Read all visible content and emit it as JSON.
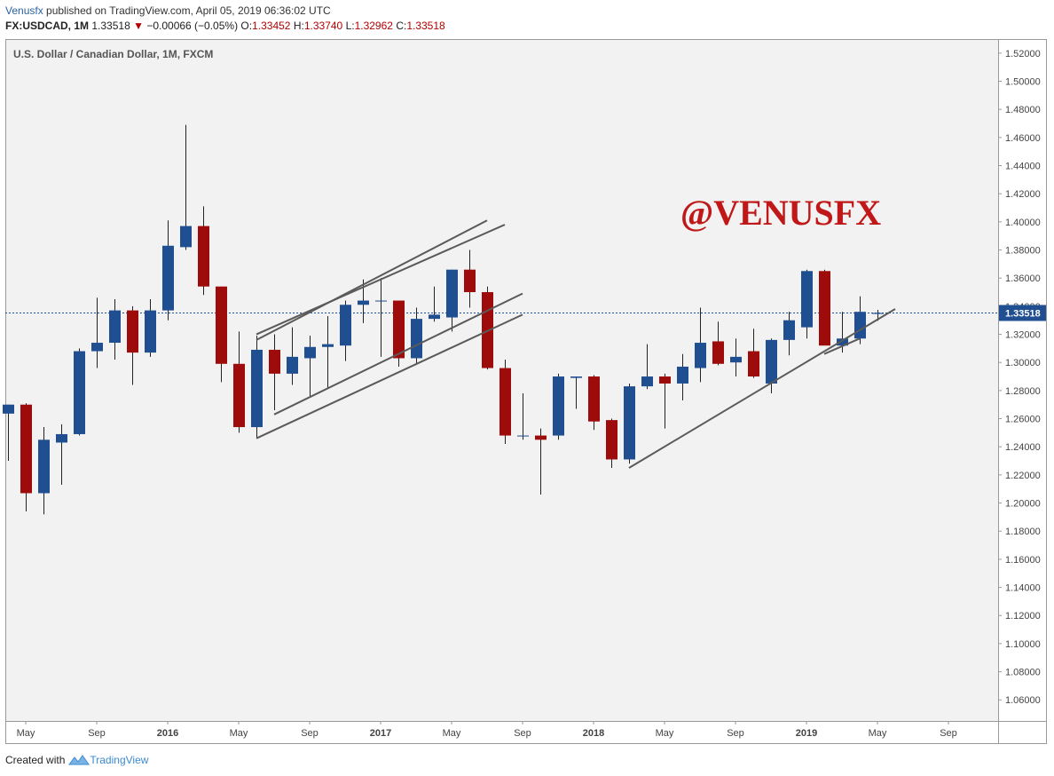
{
  "header": {
    "author": "Venusfx",
    "published_text": " published on TradingView.com, April 05, 2019 06:36:02 UTC",
    "symbol": "FX:USDCAD, 1M",
    "last": "1.33518",
    "change_arrow": "▼",
    "change": "−0.00066 (−0.05%)",
    "o_label": "O:",
    "o_value": "1.33452",
    "h_label": "H:",
    "h_value": "1.33740",
    "l_label": "L:",
    "l_value": "1.32962",
    "c_label": "C:",
    "c_value": "1.33518"
  },
  "watermark": "@VENUSFX",
  "footer": {
    "created_with": "Created with",
    "brand": "TradingView"
  },
  "colors": {
    "up": "#1f4e91",
    "down": "#9e0b0b",
    "price_line": "#1f4e91",
    "trendline": "#5a5a5a",
    "plot_bg": "#f2f2f2"
  },
  "chart_data": {
    "type": "candlestick",
    "title": "U.S. Dollar / Canadian Dollar, 1M, FXCM",
    "last_price_label": "1.33518",
    "last_price": 1.33518,
    "ylim": [
      1.045,
      1.53
    ],
    "y_ticks": [
      "1.52000",
      "1.50000",
      "1.48000",
      "1.46000",
      "1.44000",
      "1.42000",
      "1.40000",
      "1.38000",
      "1.36000",
      "1.34000",
      "1.32000",
      "1.30000",
      "1.28000",
      "1.26000",
      "1.24000",
      "1.22000",
      "1.20000",
      "1.18000",
      "1.16000",
      "1.14000",
      "1.12000",
      "1.10000",
      "1.08000",
      "1.06000"
    ],
    "x_ticks": [
      {
        "label": "May",
        "index": 1,
        "bold": false
      },
      {
        "label": "Sep",
        "index": 5,
        "bold": false
      },
      {
        "label": "2016",
        "index": 9,
        "bold": true
      },
      {
        "label": "May",
        "index": 13,
        "bold": false
      },
      {
        "label": "Sep",
        "index": 17,
        "bold": false
      },
      {
        "label": "2017",
        "index": 21,
        "bold": true
      },
      {
        "label": "May",
        "index": 25,
        "bold": false
      },
      {
        "label": "Sep",
        "index": 29,
        "bold": false
      },
      {
        "label": "2018",
        "index": 33,
        "bold": true
      },
      {
        "label": "May",
        "index": 37,
        "bold": false
      },
      {
        "label": "Sep",
        "index": 41,
        "bold": false
      },
      {
        "label": "2019",
        "index": 45,
        "bold": true
      },
      {
        "label": "May",
        "index": 49,
        "bold": false
      },
      {
        "label": "Sep",
        "index": 53,
        "bold": false
      }
    ],
    "candles": [
      {
        "date": "2015-04",
        "o": 1.2636,
        "h": 1.27,
        "l": 1.23,
        "c": 1.27
      },
      {
        "date": "2015-05",
        "o": 1.27,
        "h": 1.271,
        "l": 1.194,
        "c": 1.207
      },
      {
        "date": "2015-06",
        "o": 1.207,
        "h": 1.254,
        "l": 1.192,
        "c": 1.245
      },
      {
        "date": "2015-07",
        "o": 1.243,
        "h": 1.256,
        "l": 1.213,
        "c": 1.249
      },
      {
        "date": "2015-08",
        "o": 1.249,
        "h": 1.31,
        "l": 1.248,
        "c": 1.308
      },
      {
        "date": "2015-09",
        "o": 1.308,
        "h": 1.346,
        "l": 1.296,
        "c": 1.314
      },
      {
        "date": "2015-10",
        "o": 1.314,
        "h": 1.345,
        "l": 1.302,
        "c": 1.337
      },
      {
        "date": "2015-11",
        "o": 1.337,
        "h": 1.34,
        "l": 1.284,
        "c": 1.307
      },
      {
        "date": "2015-12",
        "o": 1.307,
        "h": 1.345,
        "l": 1.304,
        "c": 1.337
      },
      {
        "date": "2016-01",
        "o": 1.337,
        "h": 1.401,
        "l": 1.33,
        "c": 1.383
      },
      {
        "date": "2016-02",
        "o": 1.382,
        "h": 1.469,
        "l": 1.38,
        "c": 1.397
      },
      {
        "date": "2016-03",
        "o": 1.397,
        "h": 1.411,
        "l": 1.348,
        "c": 1.354
      },
      {
        "date": "2016-04",
        "o": 1.354,
        "h": 1.354,
        "l": 1.286,
        "c": 1.299
      },
      {
        "date": "2016-05",
        "o": 1.299,
        "h": 1.322,
        "l": 1.25,
        "c": 1.254
      },
      {
        "date": "2016-06",
        "o": 1.254,
        "h": 1.319,
        "l": 1.246,
        "c": 1.309
      },
      {
        "date": "2016-07",
        "o": 1.309,
        "h": 1.32,
        "l": 1.266,
        "c": 1.292
      },
      {
        "date": "2016-08",
        "o": 1.292,
        "h": 1.325,
        "l": 1.284,
        "c": 1.304
      },
      {
        "date": "2016-09",
        "o": 1.303,
        "h": 1.319,
        "l": 1.276,
        "c": 1.311
      },
      {
        "date": "2016-10",
        "o": 1.311,
        "h": 1.333,
        "l": 1.282,
        "c": 1.313
      },
      {
        "date": "2016-11",
        "o": 1.312,
        "h": 1.344,
        "l": 1.301,
        "c": 1.341
      },
      {
        "date": "2016-12",
        "o": 1.341,
        "h": 1.359,
        "l": 1.328,
        "c": 1.344
      },
      {
        "date": "2017-01",
        "o": 1.344,
        "h": 1.36,
        "l": 1.304,
        "c": 1.344
      },
      {
        "date": "2017-02",
        "o": 1.344,
        "h": 1.344,
        "l": 1.297,
        "c": 1.303
      },
      {
        "date": "2017-03",
        "o": 1.303,
        "h": 1.339,
        "l": 1.299,
        "c": 1.331
      },
      {
        "date": "2017-04",
        "o": 1.331,
        "h": 1.354,
        "l": 1.329,
        "c": 1.334
      },
      {
        "date": "2017-05",
        "o": 1.332,
        "h": 1.366,
        "l": 1.322,
        "c": 1.366
      },
      {
        "date": "2017-06",
        "o": 1.366,
        "h": 1.38,
        "l": 1.339,
        "c": 1.35
      },
      {
        "date": "2017-07",
        "o": 1.35,
        "h": 1.354,
        "l": 1.295,
        "c": 1.296
      },
      {
        "date": "2017-08",
        "o": 1.296,
        "h": 1.302,
        "l": 1.242,
        "c": 1.248
      },
      {
        "date": "2017-09",
        "o": 1.248,
        "h": 1.278,
        "l": 1.245,
        "c": 1.248
      },
      {
        "date": "2017-10",
        "o": 1.248,
        "h": 1.253,
        "l": 1.206,
        "c": 1.245
      },
      {
        "date": "2017-11",
        "o": 1.248,
        "h": 1.292,
        "l": 1.245,
        "c": 1.29
      },
      {
        "date": "2017-12",
        "o": 1.289,
        "h": 1.29,
        "l": 1.267,
        "c": 1.29
      },
      {
        "date": "2018-01",
        "o": 1.29,
        "h": 1.291,
        "l": 1.252,
        "c": 1.258
      },
      {
        "date": "2018-02",
        "o": 1.259,
        "h": 1.26,
        "l": 1.225,
        "c": 1.231
      },
      {
        "date": "2018-03",
        "o": 1.231,
        "h": 1.285,
        "l": 1.228,
        "c": 1.283
      },
      {
        "date": "2018-04",
        "o": 1.283,
        "h": 1.313,
        "l": 1.281,
        "c": 1.29
      },
      {
        "date": "2018-05",
        "o": 1.29,
        "h": 1.292,
        "l": 1.253,
        "c": 1.285
      },
      {
        "date": "2018-06",
        "o": 1.285,
        "h": 1.306,
        "l": 1.273,
        "c": 1.297
      },
      {
        "date": "2018-07",
        "o": 1.296,
        "h": 1.339,
        "l": 1.286,
        "c": 1.314
      },
      {
        "date": "2018-08",
        "o": 1.315,
        "h": 1.329,
        "l": 1.298,
        "c": 1.299
      },
      {
        "date": "2018-09",
        "o": 1.3,
        "h": 1.317,
        "l": 1.29,
        "c": 1.304
      },
      {
        "date": "2018-10",
        "o": 1.308,
        "h": 1.324,
        "l": 1.289,
        "c": 1.29
      },
      {
        "date": "2018-11",
        "o": 1.285,
        "h": 1.317,
        "l": 1.278,
        "c": 1.316
      },
      {
        "date": "2018-12",
        "o": 1.316,
        "h": 1.336,
        "l": 1.305,
        "c": 1.33
      },
      {
        "date": "2019-01",
        "o": 1.325,
        "h": 1.366,
        "l": 1.317,
        "c": 1.365
      },
      {
        "date": "2019-02",
        "o": 1.365,
        "h": 1.366,
        "l": 1.313,
        "c": 1.312
      },
      {
        "date": "2019-03",
        "o": 1.312,
        "h": 1.336,
        "l": 1.307,
        "c": 1.317
      },
      {
        "date": "2019-04",
        "o": 1.317,
        "h": 1.347,
        "l": 1.313,
        "c": 1.336
      },
      {
        "date": "2019-05",
        "o": 1.3345,
        "h": 1.3374,
        "l": 1.3296,
        "c": 1.3352
      }
    ],
    "trendlines": [
      {
        "from": {
          "index": 14,
          "y": 1.316
        },
        "to": {
          "index": 27,
          "y": 1.401
        }
      },
      {
        "from": {
          "index": 14,
          "y": 1.32
        },
        "to": {
          "index": 28,
          "y": 1.398
        }
      },
      {
        "from": {
          "index": 15,
          "y": 1.263
        },
        "to": {
          "index": 29,
          "y": 1.349
        }
      },
      {
        "from": {
          "index": 14,
          "y": 1.246
        },
        "to": {
          "index": 29,
          "y": 1.334
        }
      },
      {
        "from": {
          "index": 35,
          "y": 1.225
        },
        "to": {
          "index": 50,
          "y": 1.338
        }
      },
      {
        "from": {
          "index": 46,
          "y": 1.306
        },
        "to": {
          "index": 48,
          "y": 1.317
        }
      }
    ]
  }
}
